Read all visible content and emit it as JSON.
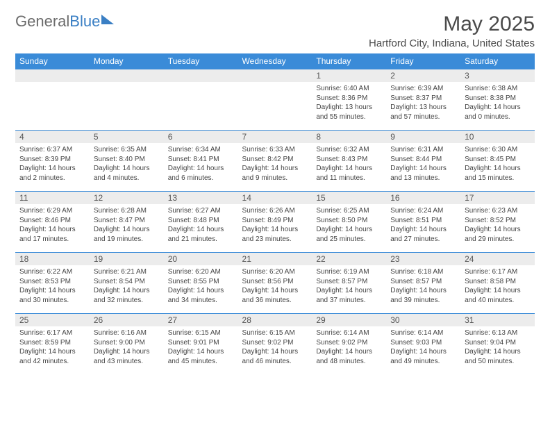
{
  "logo": {
    "text_gray": "General",
    "text_blue": "Blue"
  },
  "title": "May 2025",
  "location": "Hartford City, Indiana, United States",
  "day_headers": [
    "Sunday",
    "Monday",
    "Tuesday",
    "Wednesday",
    "Thursday",
    "Friday",
    "Saturday"
  ],
  "colors": {
    "header_bg": "#3a8bd8",
    "header_text": "#ffffff",
    "daynum_bg": "#ececec",
    "border": "#3a8bd8",
    "body_text": "#444444",
    "title_text": "#4a4a4a",
    "logo_gray": "#6b6b6b",
    "logo_blue": "#3a7fc4"
  },
  "typography": {
    "month_title_fontsize": 30,
    "location_fontsize": 15,
    "header_fontsize": 12,
    "daynum_fontsize": 12,
    "body_fontsize": 10
  },
  "weeks": [
    [
      {
        "n": "",
        "lines": []
      },
      {
        "n": "",
        "lines": []
      },
      {
        "n": "",
        "lines": []
      },
      {
        "n": "",
        "lines": []
      },
      {
        "n": "1",
        "lines": [
          "Sunrise: 6:40 AM",
          "Sunset: 8:36 PM",
          "Daylight: 13 hours",
          "and 55 minutes."
        ]
      },
      {
        "n": "2",
        "lines": [
          "Sunrise: 6:39 AM",
          "Sunset: 8:37 PM",
          "Daylight: 13 hours",
          "and 57 minutes."
        ]
      },
      {
        "n": "3",
        "lines": [
          "Sunrise: 6:38 AM",
          "Sunset: 8:38 PM",
          "Daylight: 14 hours",
          "and 0 minutes."
        ]
      }
    ],
    [
      {
        "n": "4",
        "lines": [
          "Sunrise: 6:37 AM",
          "Sunset: 8:39 PM",
          "Daylight: 14 hours",
          "and 2 minutes."
        ]
      },
      {
        "n": "5",
        "lines": [
          "Sunrise: 6:35 AM",
          "Sunset: 8:40 PM",
          "Daylight: 14 hours",
          "and 4 minutes."
        ]
      },
      {
        "n": "6",
        "lines": [
          "Sunrise: 6:34 AM",
          "Sunset: 8:41 PM",
          "Daylight: 14 hours",
          "and 6 minutes."
        ]
      },
      {
        "n": "7",
        "lines": [
          "Sunrise: 6:33 AM",
          "Sunset: 8:42 PM",
          "Daylight: 14 hours",
          "and 9 minutes."
        ]
      },
      {
        "n": "8",
        "lines": [
          "Sunrise: 6:32 AM",
          "Sunset: 8:43 PM",
          "Daylight: 14 hours",
          "and 11 minutes."
        ]
      },
      {
        "n": "9",
        "lines": [
          "Sunrise: 6:31 AM",
          "Sunset: 8:44 PM",
          "Daylight: 14 hours",
          "and 13 minutes."
        ]
      },
      {
        "n": "10",
        "lines": [
          "Sunrise: 6:30 AM",
          "Sunset: 8:45 PM",
          "Daylight: 14 hours",
          "and 15 minutes."
        ]
      }
    ],
    [
      {
        "n": "11",
        "lines": [
          "Sunrise: 6:29 AM",
          "Sunset: 8:46 PM",
          "Daylight: 14 hours",
          "and 17 minutes."
        ]
      },
      {
        "n": "12",
        "lines": [
          "Sunrise: 6:28 AM",
          "Sunset: 8:47 PM",
          "Daylight: 14 hours",
          "and 19 minutes."
        ]
      },
      {
        "n": "13",
        "lines": [
          "Sunrise: 6:27 AM",
          "Sunset: 8:48 PM",
          "Daylight: 14 hours",
          "and 21 minutes."
        ]
      },
      {
        "n": "14",
        "lines": [
          "Sunrise: 6:26 AM",
          "Sunset: 8:49 PM",
          "Daylight: 14 hours",
          "and 23 minutes."
        ]
      },
      {
        "n": "15",
        "lines": [
          "Sunrise: 6:25 AM",
          "Sunset: 8:50 PM",
          "Daylight: 14 hours",
          "and 25 minutes."
        ]
      },
      {
        "n": "16",
        "lines": [
          "Sunrise: 6:24 AM",
          "Sunset: 8:51 PM",
          "Daylight: 14 hours",
          "and 27 minutes."
        ]
      },
      {
        "n": "17",
        "lines": [
          "Sunrise: 6:23 AM",
          "Sunset: 8:52 PM",
          "Daylight: 14 hours",
          "and 29 minutes."
        ]
      }
    ],
    [
      {
        "n": "18",
        "lines": [
          "Sunrise: 6:22 AM",
          "Sunset: 8:53 PM",
          "Daylight: 14 hours",
          "and 30 minutes."
        ]
      },
      {
        "n": "19",
        "lines": [
          "Sunrise: 6:21 AM",
          "Sunset: 8:54 PM",
          "Daylight: 14 hours",
          "and 32 minutes."
        ]
      },
      {
        "n": "20",
        "lines": [
          "Sunrise: 6:20 AM",
          "Sunset: 8:55 PM",
          "Daylight: 14 hours",
          "and 34 minutes."
        ]
      },
      {
        "n": "21",
        "lines": [
          "Sunrise: 6:20 AM",
          "Sunset: 8:56 PM",
          "Daylight: 14 hours",
          "and 36 minutes."
        ]
      },
      {
        "n": "22",
        "lines": [
          "Sunrise: 6:19 AM",
          "Sunset: 8:57 PM",
          "Daylight: 14 hours",
          "and 37 minutes."
        ]
      },
      {
        "n": "23",
        "lines": [
          "Sunrise: 6:18 AM",
          "Sunset: 8:57 PM",
          "Daylight: 14 hours",
          "and 39 minutes."
        ]
      },
      {
        "n": "24",
        "lines": [
          "Sunrise: 6:17 AM",
          "Sunset: 8:58 PM",
          "Daylight: 14 hours",
          "and 40 minutes."
        ]
      }
    ],
    [
      {
        "n": "25",
        "lines": [
          "Sunrise: 6:17 AM",
          "Sunset: 8:59 PM",
          "Daylight: 14 hours",
          "and 42 minutes."
        ]
      },
      {
        "n": "26",
        "lines": [
          "Sunrise: 6:16 AM",
          "Sunset: 9:00 PM",
          "Daylight: 14 hours",
          "and 43 minutes."
        ]
      },
      {
        "n": "27",
        "lines": [
          "Sunrise: 6:15 AM",
          "Sunset: 9:01 PM",
          "Daylight: 14 hours",
          "and 45 minutes."
        ]
      },
      {
        "n": "28",
        "lines": [
          "Sunrise: 6:15 AM",
          "Sunset: 9:02 PM",
          "Daylight: 14 hours",
          "and 46 minutes."
        ]
      },
      {
        "n": "29",
        "lines": [
          "Sunrise: 6:14 AM",
          "Sunset: 9:02 PM",
          "Daylight: 14 hours",
          "and 48 minutes."
        ]
      },
      {
        "n": "30",
        "lines": [
          "Sunrise: 6:14 AM",
          "Sunset: 9:03 PM",
          "Daylight: 14 hours",
          "and 49 minutes."
        ]
      },
      {
        "n": "31",
        "lines": [
          "Sunrise: 6:13 AM",
          "Sunset: 9:04 PM",
          "Daylight: 14 hours",
          "and 50 minutes."
        ]
      }
    ]
  ]
}
